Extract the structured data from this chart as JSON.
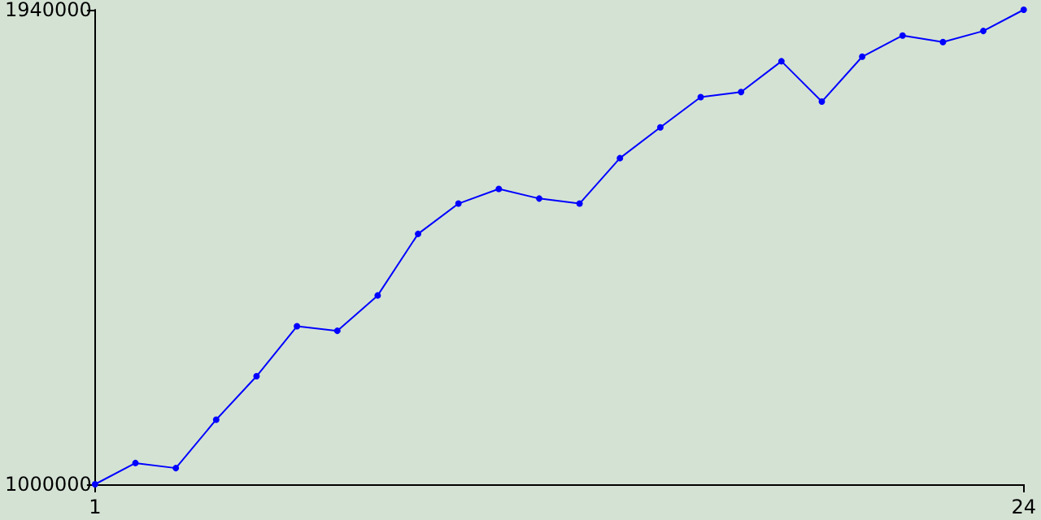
{
  "chart_data": {
    "type": "line",
    "x": [
      1,
      2,
      3,
      4,
      5,
      6,
      7,
      8,
      9,
      10,
      11,
      12,
      13,
      14,
      15,
      16,
      17,
      18,
      19,
      20,
      21,
      22,
      23,
      24
    ],
    "series": [
      {
        "color": "#0000ff",
        "values": [
          1000000,
          1042000,
          1032000,
          1128000,
          1214000,
          1313000,
          1304000,
          1374000,
          1496000,
          1556000,
          1585000,
          1566000,
          1556000,
          1646000,
          1707000,
          1767000,
          1777000,
          1838000,
          1758000,
          1847000,
          1889000,
          1876000,
          1898000,
          1940000
        ]
      }
    ],
    "xlim": [
      1,
      24
    ],
    "xticks": [
      1,
      24
    ],
    "ylim": [
      1000000,
      1940000
    ],
    "yticks": [
      1000000,
      1940000
    ],
    "grid": false,
    "marker": "circle",
    "line_style": "solid"
  }
}
